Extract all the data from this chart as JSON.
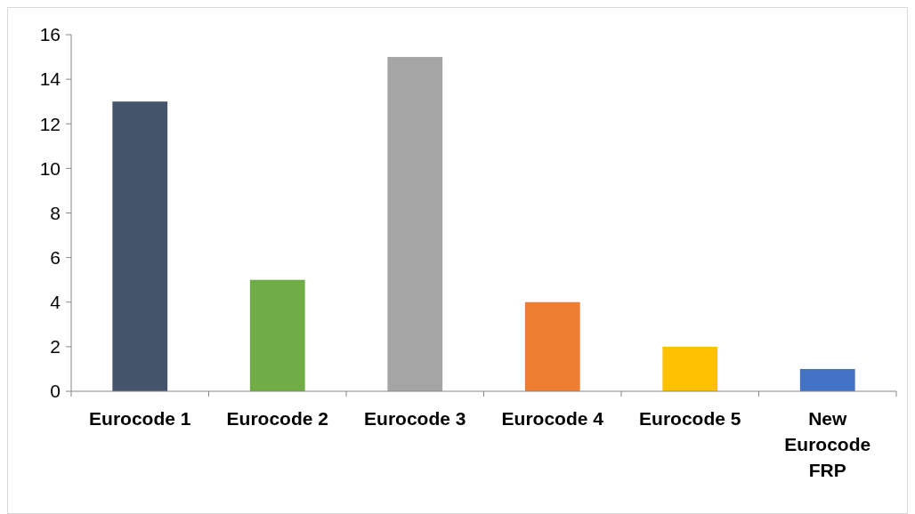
{
  "chart_data": {
    "type": "bar",
    "categories": [
      "Eurocode 1",
      "Eurocode 2",
      "Eurocode 3",
      "Eurocode 4",
      "Eurocode 5",
      "New Eurocode FRP"
    ],
    "values": [
      13,
      5,
      15,
      4,
      2,
      1
    ],
    "colors": [
      "#44546a",
      "#70ad47",
      "#a5a5a5",
      "#ed7d31",
      "#ffc000",
      "#4472c4"
    ],
    "ylim": [
      0,
      16
    ],
    "yticks": [
      0,
      2,
      4,
      6,
      8,
      10,
      12,
      14,
      16
    ],
    "grid": false
  }
}
